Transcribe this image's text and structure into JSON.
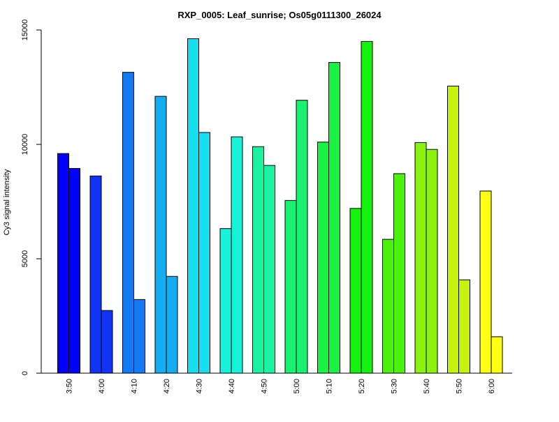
{
  "chart_data": {
    "type": "bar",
    "title": "RXP_0005: Leaf_sunrise; Os05g0111300_26024",
    "xlabel": "",
    "ylabel": "Cy3 signal intensity",
    "ylim": [
      0,
      15000
    ],
    "yticks": [
      0,
      5000,
      10000,
      15000
    ],
    "grid": false,
    "legend": "none",
    "categories": [
      "3:50",
      "4:00",
      "4:10",
      "4:20",
      "4:30",
      "4:40",
      "4:50",
      "5:00",
      "5:10",
      "5:20",
      "5:30",
      "5:40",
      "5:50",
      "6:00"
    ],
    "colors": [
      "#0000FF",
      "#1133F5",
      "#127BF2",
      "#14AEF0",
      "#16DDF0",
      "#18F2D8",
      "#19F2A3",
      "#19F270",
      "#19F241",
      "#14F20E",
      "#4CF20E",
      "#8AF20E",
      "#C5F20E",
      "#FFFF14"
    ],
    "series": [
      {
        "values": [
          9600,
          8620,
          13150,
          12100,
          14620,
          6320,
          9900,
          7550,
          10100,
          7200,
          5850,
          10080,
          12550,
          7960
        ]
      },
      {
        "values": [
          8950,
          2740,
          3220,
          4230,
          10520,
          10330,
          9080,
          11930,
          13580,
          14500,
          8720,
          9780,
          4080,
          1590
        ]
      }
    ]
  }
}
